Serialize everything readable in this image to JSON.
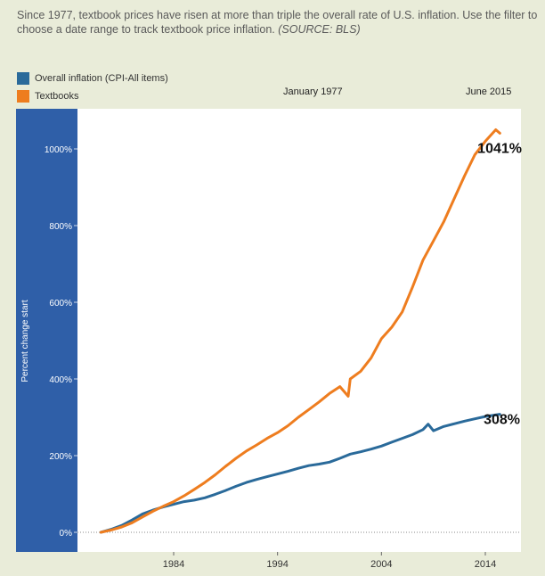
{
  "caption": {
    "text": "Since 1977, textbook prices have risen at more than triple the overall rate of U.S. inflation. Use the filter to choose a date range to track textbook price inflation.",
    "source": "(SOURCE: BLS)"
  },
  "range": {
    "start": "January 1977",
    "end": "June 2015"
  },
  "chart_data": {
    "type": "line",
    "title": "",
    "xlabel": "",
    "ylabel": "Percent change start",
    "xlim": [
      1974.5,
      2017.3
    ],
    "ylim": [
      0,
      1100
    ],
    "xticks": [
      1984,
      1994,
      2004,
      2014
    ],
    "yticks": [
      0,
      200,
      400,
      600,
      800,
      1000
    ],
    "ytick_labels": [
      "0%",
      "200%",
      "400%",
      "600%",
      "800%",
      "1000%"
    ],
    "legend_position": "top-left",
    "grid": false,
    "colors": {
      "cpi": "#2a6a9a",
      "textbooks": "#ee7d1f",
      "ylabel_bar": "#2f5fa8",
      "background": "#e9ecd9"
    },
    "series": [
      {
        "name": "Overall inflation (CPI-All items)",
        "key": "cpi",
        "x": [
          1977,
          1978,
          1979,
          1980,
          1981,
          1982,
          1983,
          1984,
          1985,
          1986,
          1987,
          1988,
          1989,
          1990,
          1991,
          1992,
          1993,
          1994,
          1995,
          1996,
          1997,
          1998,
          1999,
          2000,
          2001,
          2002,
          2003,
          2004,
          2005,
          2006,
          2007,
          2008,
          2008.5,
          2009,
          2010,
          2011,
          2012,
          2013,
          2014,
          2015.4
        ],
        "y": [
          0,
          8,
          18,
          32,
          48,
          58,
          66,
          73,
          80,
          84,
          90,
          99,
          109,
          120,
          130,
          138,
          145,
          152,
          159,
          167,
          174,
          178,
          183,
          193,
          204,
          210,
          217,
          225,
          235,
          245,
          255,
          268,
          282,
          265,
          276,
          283,
          290,
          296,
          302,
          308
        ]
      },
      {
        "name": "Textbooks",
        "key": "textbooks",
        "x": [
          1977,
          1978,
          1979,
          1980,
          1981,
          1982,
          1983,
          1984,
          1985,
          1986,
          1987,
          1988,
          1989,
          1990,
          1991,
          1992,
          1993,
          1994,
          1995,
          1996,
          1997,
          1998,
          1999,
          2000,
          2000.8,
          2001,
          2002,
          2003,
          2004,
          2005,
          2006,
          2007,
          2008,
          2009,
          2010,
          2011,
          2012,
          2013,
          2014,
          2015,
          2015.4
        ],
        "y": [
          0,
          6,
          14,
          25,
          40,
          55,
          68,
          80,
          95,
          112,
          130,
          150,
          172,
          193,
          212,
          228,
          245,
          260,
          278,
          300,
          320,
          340,
          362,
          380,
          355,
          400,
          420,
          455,
          505,
          535,
          575,
          640,
          710,
          760,
          810,
          870,
          930,
          985,
          1020,
          1050,
          1041
        ]
      }
    ],
    "annotations": [
      {
        "series": "textbooks",
        "label": "1041%",
        "x": 2015.4,
        "y": 1041
      },
      {
        "series": "cpi",
        "label": "308%",
        "x": 2015.4,
        "y": 308
      }
    ]
  }
}
